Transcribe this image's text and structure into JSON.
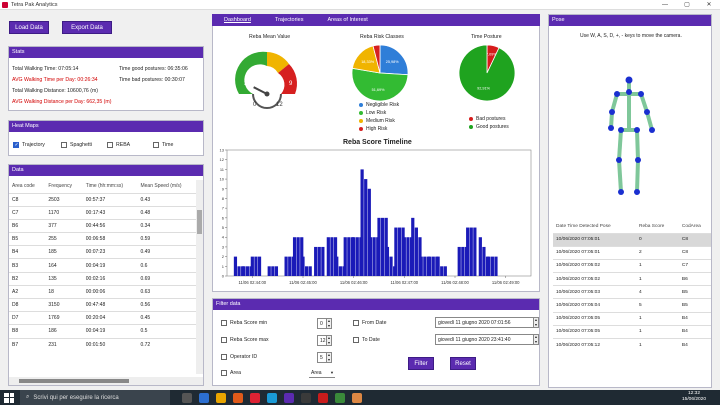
{
  "window": {
    "title": "Tetra Pak Analytics",
    "controls": [
      "—",
      "▢",
      "✕"
    ]
  },
  "toolbar": {
    "load": "Load Data",
    "export": "Export Data"
  },
  "stats": {
    "header": "Stats",
    "total_walking_time": "Total Walking Time: 07:05:14",
    "avg_walking_time": "AVG Walking Time per Day: 00:26:34",
    "total_walking_distance": "Total Walking Distance: 10600,76 (m)",
    "avg_walking_distance": "AVG Walking Distance per Day: 662,35 (m)",
    "time_good": "Time good postures: 06:35:06",
    "time_bad": "Time bad postures: 00:30:07"
  },
  "heatmaps": {
    "header": "Heat Maps",
    "options": [
      {
        "label": "Trajectory",
        "checked": true
      },
      {
        "label": "Spaghetti",
        "checked": false
      },
      {
        "label": "REBA",
        "checked": false
      },
      {
        "label": "Time",
        "checked": false
      }
    ]
  },
  "data_table": {
    "header": "Data",
    "columns": [
      "Area code",
      "Frequency",
      "Time (hh:mm:ss)",
      "Mean Speed (m/s)"
    ],
    "rows": [
      [
        "C8",
        "2503",
        "00:57:37",
        "0.43"
      ],
      [
        "C7",
        "1170",
        "00:17:43",
        "0.48"
      ],
      [
        "B6",
        "377",
        "00:44:56",
        "0.34"
      ],
      [
        "B5",
        "255",
        "00:06:58",
        "0.59"
      ],
      [
        "B4",
        "185",
        "00:07:23",
        "0.49"
      ],
      [
        "B3",
        "164",
        "00:04:19",
        "0.6"
      ],
      [
        "B2",
        "135",
        "00:02:16",
        "0.69"
      ],
      [
        "A2",
        "18",
        "00:00:06",
        "0.63"
      ],
      [
        "D8",
        "3150",
        "00:47:48",
        "0.56"
      ],
      [
        "D7",
        "1769",
        "00:20:04",
        "0.45"
      ],
      [
        "B8",
        "186",
        "00:04:19",
        "0.5"
      ],
      [
        "B7",
        "231",
        "00:01:50",
        "0.72"
      ]
    ]
  },
  "tabs": [
    "Dashboard",
    "Trajectories",
    "Areas of Interest"
  ],
  "gauge": {
    "title": "Reba Mean Value",
    "labels": [
      "3",
      "9",
      "0",
      "12"
    ],
    "needle_value": 1.8,
    "max": 12
  },
  "reba_pie": {
    "title": "Reba Risk Classes",
    "slices": [
      {
        "label": "Negligible Risk",
        "value": 25.98,
        "text": "25,98%",
        "color": "#2f7ed8"
      },
      {
        "label": "Low Risk",
        "value": 51.69,
        "text": "51,69%",
        "color": "#33bb33"
      },
      {
        "label": "Medium Risk",
        "value": 18.33,
        "text": "18,33%",
        "color": "#f0b400"
      },
      {
        "label": "High Risk",
        "value": 4.0,
        "text": "",
        "color": "#d62020"
      }
    ]
  },
  "posture_pie": {
    "title": "Time Posture",
    "slices": [
      {
        "label": "Good postures",
        "value": 92.91,
        "text": "92,91%",
        "color": "#1fa31f"
      },
      {
        "label": "Bad postures",
        "value": 7.09,
        "text": "7,09%",
        "color": "#d61c1c"
      }
    ]
  },
  "timeline": {
    "title": "Reba Score Timeline",
    "yticks": [
      "0",
      "1",
      "2",
      "3",
      "4",
      "5",
      "6",
      "7",
      "8",
      "9",
      "10",
      "11",
      "12",
      "13"
    ],
    "xticks": [
      "11/06 02:44:00",
      "11/06 02:45:00",
      "11/06 02:46:00",
      "11/06 02:47:00",
      "11/06 02:48:00",
      "11/06 02:49:00"
    ]
  },
  "chart_data": {
    "type": "bar",
    "title": "Reba Score Timeline",
    "ylim": [
      0,
      13
    ],
    "categories": [
      "02:43:40",
      "02:43:50",
      "02:44:00",
      "02:44:20",
      "02:44:40",
      "02:44:50",
      "02:45:00",
      "02:45:15",
      "02:45:30",
      "02:45:40",
      "02:45:50",
      "02:46:00",
      "02:46:10",
      "02:46:20",
      "02:46:30",
      "02:46:40",
      "02:46:50",
      "02:47:00",
      "02:47:10",
      "02:47:20",
      "02:47:30",
      "02:47:40",
      "02:48:05",
      "02:48:15",
      "02:48:30",
      "02:48:40"
    ],
    "values": [
      2,
      1,
      2,
      1,
      2,
      4,
      2,
      3,
      4,
      2,
      4,
      4,
      11,
      4,
      6,
      3,
      5,
      4,
      6,
      2,
      2,
      2,
      3,
      5,
      4,
      2
    ]
  },
  "pose": {
    "header": "Pose",
    "hint": "Use W, A, S, D, +, - keys to move the camera.",
    "columns": [
      "Date Time Detected Pose",
      "Reba Score",
      "CodArea"
    ],
    "rows": [
      [
        "10/06/2020 07:05:01",
        "0",
        "C8"
      ],
      [
        "10/06/2020 07:05:01",
        "2",
        "C8"
      ],
      [
        "10/06/2020 07:05:02",
        "1",
        "C7"
      ],
      [
        "10/06/2020 07:05:02",
        "1",
        "B6"
      ],
      [
        "10/06/2020 07:05:03",
        "4",
        "B5"
      ],
      [
        "10/06/2020 07:05:04",
        "5",
        "B5"
      ],
      [
        "10/06/2020 07:05:05",
        "1",
        "B4"
      ],
      [
        "10/06/2020 07:05:05",
        "1",
        "B4"
      ],
      [
        "10/06/2020 07:05:12",
        "1",
        "B4"
      ]
    ]
  },
  "filter": {
    "header": "Filter data",
    "reba_min_label": "Reba Score min",
    "reba_min_value": "0",
    "reba_max_label": "Reba Score max",
    "reba_max_value": "12",
    "operator_label": "Operator ID",
    "operator_value": "5",
    "area_label": "Area",
    "area_value": "Area",
    "from_label": "From Date",
    "from_value": "giovedì 11 giugno 2020 07:01:56",
    "to_label": "To Date",
    "to_value": "giovedì 11 giugno 2020 23:41:40",
    "filter_btn": "Filter",
    "reset_btn": "Reset"
  },
  "taskbar": {
    "search": "Scrivi qui per eseguire la ricerca",
    "time": "12:32",
    "date": "15/06/2020"
  }
}
